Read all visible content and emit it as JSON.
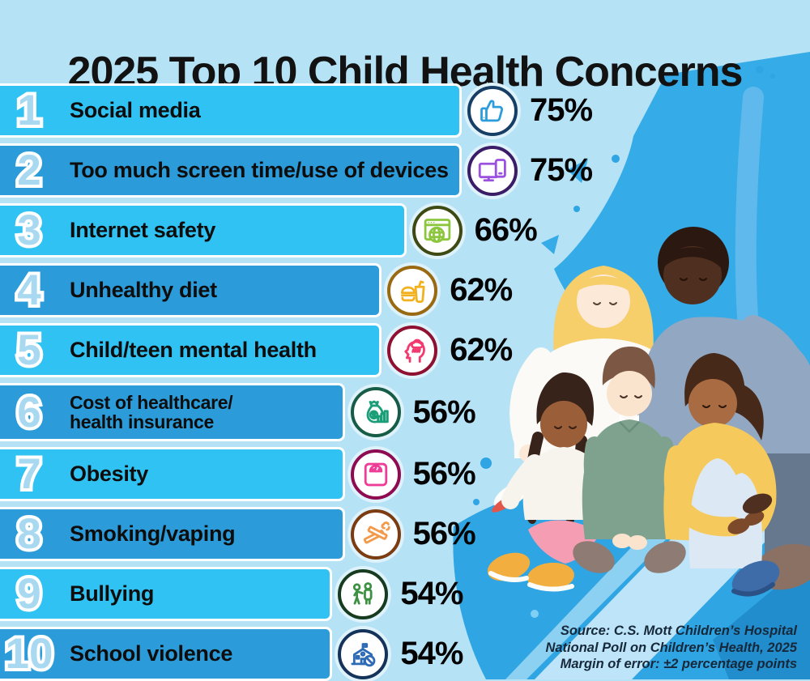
{
  "title": "2025 Top 10 Child Health Concerns",
  "chart_data": {
    "type": "bar",
    "orientation": "horizontal",
    "title": "2025 Top 10 Child Health Concerns",
    "unit": "%",
    "xlim": [
      0,
      100
    ],
    "categories": [
      "Social media",
      "Too much screen time/use of devices",
      "Internet safety",
      "Unhealthy diet",
      "Child/teen mental health",
      "Cost of healthcare/health insurance",
      "Obesity",
      "Smoking/vaping",
      "Bullying",
      "School violence"
    ],
    "values": [
      75,
      75,
      66,
      62,
      62,
      56,
      56,
      56,
      54,
      54
    ],
    "value_labels": [
      "75%",
      "75%",
      "66%",
      "62%",
      "62%",
      "56%",
      "56%",
      "56%",
      "54%",
      "54%"
    ],
    "source_note": "Source: C.S. Mott Children’s Hospital National Poll on Children’s Health, 2025. Margin of error: ±2 percentage points"
  },
  "rows": [
    {
      "rank": "1",
      "label_lines": [
        "Social media"
      ],
      "value_label": "75%",
      "pct": 75,
      "icon": "thumbs-up-icon",
      "ring": "#173F66",
      "glyph": "#2D9CDB"
    },
    {
      "rank": "2",
      "label_lines": [
        "Too much screen time/use of devices"
      ],
      "value_label": "75%",
      "pct": 75,
      "icon": "devices-icon",
      "ring": "#3A1D66",
      "glyph": "#9B51E0"
    },
    {
      "rank": "3",
      "label_lines": [
        "Internet safety"
      ],
      "value_label": "66%",
      "pct": 66,
      "icon": "internet-safety-icon",
      "ring": "#3E4A12",
      "glyph": "#8CC63E"
    },
    {
      "rank": "4",
      "label_lines": [
        "Unhealthy diet"
      ],
      "value_label": "62%",
      "pct": 62,
      "icon": "fast-food-icon",
      "ring": "#9A6A12",
      "glyph": "#F2B11E"
    },
    {
      "rank": "5",
      "label_lines": [
        "Child/teen mental health"
      ],
      "value_label": "62%",
      "pct": 62,
      "icon": "mental-health-icon",
      "ring": "#8F1030",
      "glyph": "#F23A70"
    },
    {
      "rank": "6",
      "label_lines": [
        "Cost of healthcare/",
        "health insurance"
      ],
      "value_label": "56%",
      "pct": 56,
      "icon": "healthcare-cost-icon",
      "ring": "#175C46",
      "glyph": "#1A9E77"
    },
    {
      "rank": "7",
      "label_lines": [
        "Obesity"
      ],
      "value_label": "56%",
      "pct": 56,
      "icon": "weight-scale-icon",
      "ring": "#8E0B52",
      "glyph": "#EE3D96"
    },
    {
      "rank": "8",
      "label_lines": [
        "Smoking/vaping"
      ],
      "value_label": "56%",
      "pct": 56,
      "icon": "smoking-vaping-icon",
      "ring": "#7A3C10",
      "glyph": "#F2994A"
    },
    {
      "rank": "9",
      "label_lines": [
        "Bullying"
      ],
      "value_label": "54%",
      "pct": 54,
      "icon": "bullying-icon",
      "ring": "#173B1E",
      "glyph": "#3C9142"
    },
    {
      "rank": "10",
      "label_lines": [
        "School violence"
      ],
      "value_label": "54%",
      "pct": 54,
      "icon": "school-violence-icon",
      "ring": "#14325A",
      "glyph": "#2D6BB4"
    }
  ],
  "style": {
    "background": "#B6E2F6",
    "bar_color_odd": "#2FC2F2",
    "bar_color_even": "#2B9BD9",
    "rank_color": "#A9D9F1",
    "splash_blue": "#2FA5E4",
    "text_color": "#121212"
  },
  "source": {
    "line1": "Source: C.S. Mott Children’s Hospital",
    "line2": "National Poll on Children’s Health, 2025",
    "line3": "Margin of error: ±2 percentage points"
  }
}
